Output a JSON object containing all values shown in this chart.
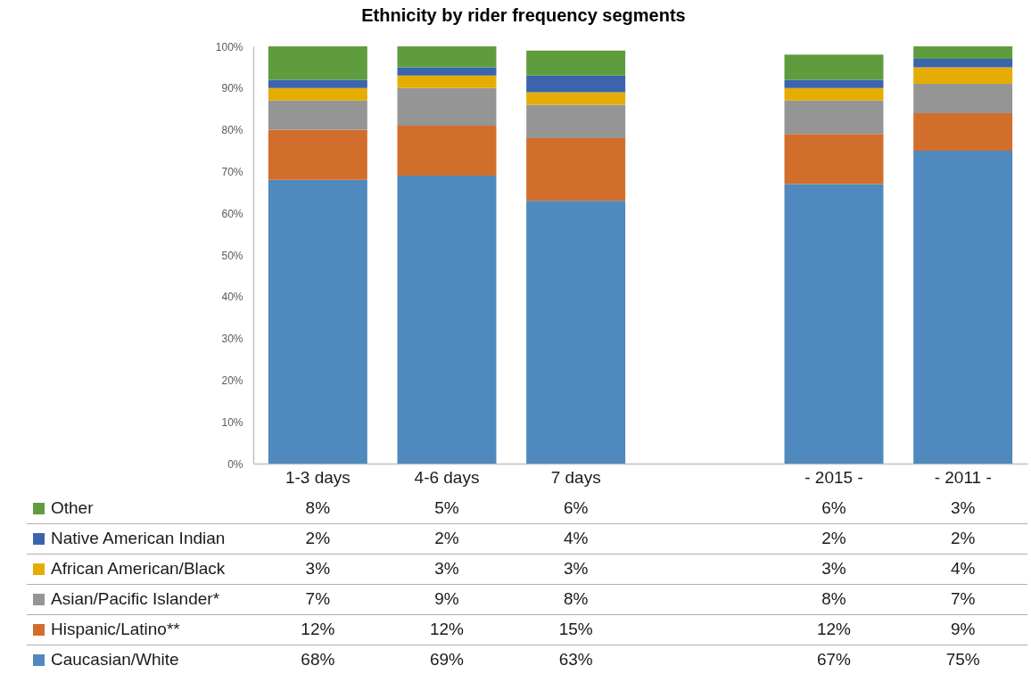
{
  "chart_data": {
    "type": "bar",
    "title": "Ethnicity by rider frequency segments",
    "categories": [
      "1-3 days",
      "4-6 days",
      "7 days",
      null,
      "- 2015 -",
      "- 2011 -"
    ],
    "stacked": true,
    "ylim": [
      0,
      100
    ],
    "yticks": [
      {
        "value": 0,
        "label": "0%"
      },
      {
        "value": 10,
        "label": "10%"
      },
      {
        "value": 20,
        "label": "20%"
      },
      {
        "value": 30,
        "label": "30%"
      },
      {
        "value": 40,
        "label": "40%"
      },
      {
        "value": 50,
        "label": "50%"
      },
      {
        "value": 60,
        "label": "60%"
      },
      {
        "value": 70,
        "label": "70%"
      },
      {
        "value": 80,
        "label": "80%"
      },
      {
        "value": 90,
        "label": "90%"
      },
      {
        "value": 100,
        "label": "100%"
      }
    ],
    "legend": "bottom left",
    "series": [
      {
        "name": "Caucasian/White",
        "color": "#4f89bd",
        "values": [
          68,
          69,
          63,
          null,
          67,
          75
        ],
        "value_labels": [
          "68%",
          "69%",
          "63%",
          null,
          "67%",
          "75%"
        ]
      },
      {
        "name": "Hispanic/Latino**",
        "color": "#d26e2c",
        "values": [
          12,
          12,
          15,
          null,
          12,
          9
        ],
        "value_labels": [
          "12%",
          "12%",
          "15%",
          null,
          "12%",
          "9%"
        ]
      },
      {
        "name": "Asian/Pacific Islander*",
        "color": "#959595",
        "values": [
          7,
          9,
          8,
          null,
          8,
          7
        ],
        "value_labels": [
          "7%",
          "9%",
          "8%",
          null,
          "8%",
          "7%"
        ]
      },
      {
        "name": "African American/Black",
        "color": "#e5ad03",
        "values": [
          3,
          3,
          3,
          null,
          3,
          4
        ],
        "value_labels": [
          "3%",
          "3%",
          "3%",
          null,
          "3%",
          "4%"
        ]
      },
      {
        "name": "Native American Indian",
        "color": "#3b64ad",
        "values": [
          2,
          2,
          4,
          null,
          2,
          2
        ],
        "value_labels": [
          "2%",
          "2%",
          "4%",
          null,
          "2%",
          "2%"
        ]
      },
      {
        "name": "Other",
        "color": "#5f9c3e",
        "values": [
          8,
          5,
          6,
          null,
          6,
          3
        ],
        "value_labels": [
          "8%",
          "5%",
          "6%",
          null,
          "6%",
          "3%"
        ]
      }
    ]
  }
}
